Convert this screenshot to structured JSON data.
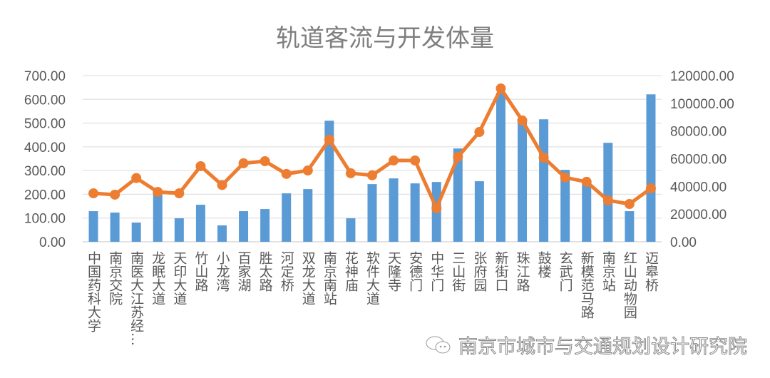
{
  "chart_data": {
    "type": "bar+line",
    "title": "轨道客流与开发体量",
    "categories": [
      "中国药科大学",
      "南京交院",
      "南医大江苏经…",
      "龙眠大道",
      "天印大道",
      "竹山路",
      "小龙湾",
      "百家湖",
      "胜太路",
      "河定桥",
      "双龙大道",
      "南京南站",
      "花神庙",
      "软件大道",
      "天隆寺",
      "安德门",
      "中华门",
      "三山街",
      "张府园",
      "新街口",
      "珠江路",
      "鼓楼",
      "玄武门",
      "新模范马路",
      "南京站",
      "红山动物园",
      "迈皋桥"
    ],
    "series": [
      {
        "type": "bar",
        "axis": "left",
        "color": "#5b9bd5",
        "values": [
          129,
          123,
          81,
          213,
          99,
          156,
          69,
          129,
          138,
          204,
          222,
          510,
          99,
          243,
          267,
          246,
          252,
          393,
          255,
          628,
          513,
          516,
          303,
          243,
          417,
          129,
          621
        ]
      },
      {
        "type": "line",
        "axis": "right",
        "color": "#ed7d31",
        "values": [
          35000,
          34000,
          46000,
          36000,
          35000,
          54600,
          41000,
          56700,
          58200,
          49000,
          51500,
          73700,
          49500,
          48000,
          58700,
          58700,
          24200,
          61300,
          79300,
          110700,
          87600,
          60800,
          46400,
          43300,
          29900,
          27300,
          38600
        ]
      }
    ],
    "left_axis": {
      "range": [
        0,
        700
      ],
      "ticks": [
        "0.00",
        "100.00",
        "200.00",
        "300.00",
        "400.00",
        "500.00",
        "600.00",
        "700.00"
      ]
    },
    "right_axis": {
      "range": [
        0,
        120000
      ],
      "ticks": [
        "0.00",
        "20000.00",
        "40000.00",
        "60000.00",
        "80000.00",
        "100000.00",
        "120000.00"
      ]
    },
    "grid": true,
    "legend": "none"
  },
  "watermark": {
    "text": "南京市城市与交通规划设计研究院",
    "icon": "wechat-icon"
  }
}
